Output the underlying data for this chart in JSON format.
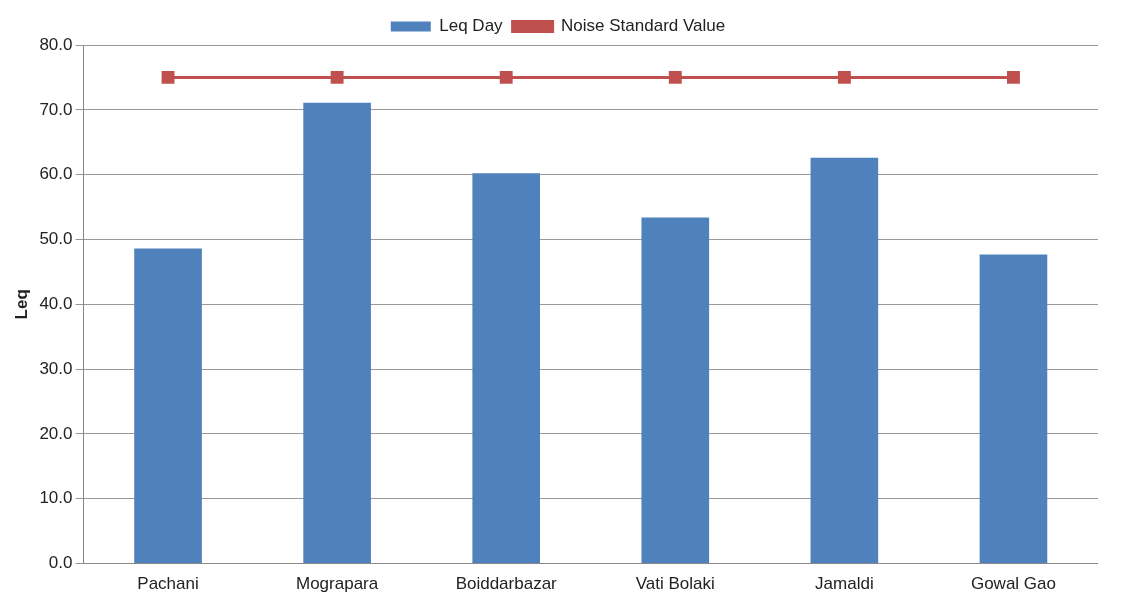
{
  "chart_data": {
    "type": "bar",
    "ylabel": "Leq",
    "categories": [
      "Pachani",
      "Mograpara",
      "Boiddarbazar",
      "Vati Bolaki",
      "Jamaldi",
      "Gowal Gao"
    ],
    "series": [
      {
        "name": "Leq Day",
        "color": "#4f81bd",
        "values": [
          48.6,
          71.1,
          60.2,
          53.4,
          62.6,
          47.7
        ]
      },
      {
        "name": "Noise Standard Value",
        "type": "line",
        "color": "#c0504d",
        "marker": "square",
        "values": [
          75,
          75,
          75,
          75,
          75,
          75
        ]
      }
    ],
    "ylim": [
      0,
      80
    ],
    "yticks": [
      {
        "value": 0,
        "label": "0.0"
      },
      {
        "value": 10,
        "label": "10.0"
      },
      {
        "value": 20,
        "label": "20.0"
      },
      {
        "value": 30,
        "label": "30.0"
      },
      {
        "value": 40,
        "label": "40.0"
      },
      {
        "value": 50,
        "label": "50.0"
      },
      {
        "value": 60,
        "label": "60.0"
      },
      {
        "value": 70,
        "label": "70.0"
      },
      {
        "value": 80,
        "label": "80.0"
      }
    ],
    "grid": "y",
    "legend": "top"
  }
}
